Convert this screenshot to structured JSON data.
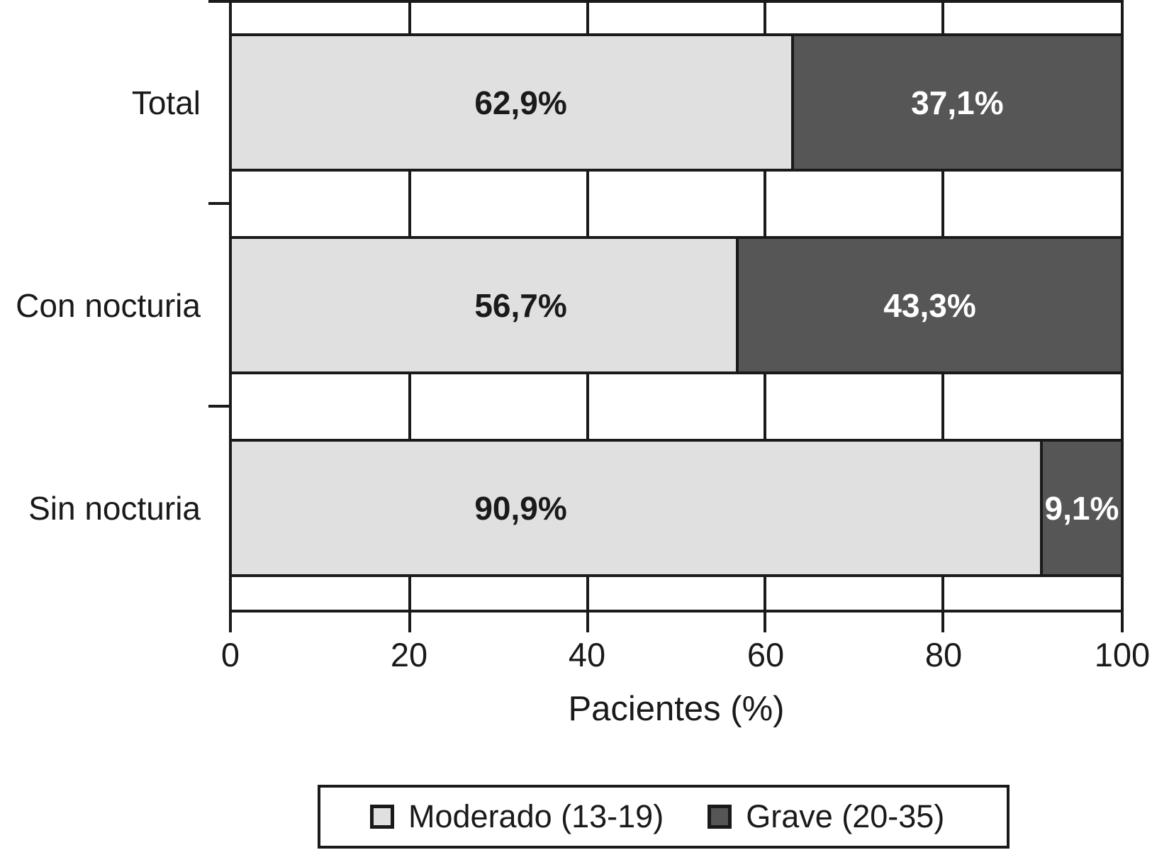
{
  "chart_data": {
    "type": "bar",
    "orientation": "horizontal_stacked",
    "categories": [
      "Total",
      "Con nocturia",
      "Sin nocturia"
    ],
    "series": [
      {
        "name": "Moderado (13-19)",
        "color": "#e0e0e0",
        "values": [
          62.9,
          56.7,
          90.9
        ]
      },
      {
        "name": "Grave (20-35)",
        "color": "#565656",
        "values": [
          37.1,
          43.3,
          9.1
        ]
      }
    ],
    "value_labels": {
      "moderado": [
        "62,9%",
        "56,7%",
        "90,9%"
      ],
      "grave": [
        "37,1%",
        "43,3%",
        "9,1%"
      ]
    },
    "xlabel": "Pacientes (%)",
    "xlim": [
      0,
      100
    ],
    "xticks": [
      "0",
      "20",
      "40",
      "60",
      "80",
      "100"
    ],
    "grid": "vertical gridlines at each x tick",
    "legend_position": "bottom center"
  },
  "legend": {
    "items": [
      {
        "label": "Moderado (13-19)",
        "color": "#e0e0e0"
      },
      {
        "label": "Grave (20-35)",
        "color": "#565656"
      }
    ]
  },
  "colors": {
    "bar_moderado": "#e0e0e0",
    "bar_grave": "#565656",
    "axis_line": "#1a1a1a",
    "background": "#ffffff",
    "value_text_on_light": "#1a1a1a",
    "value_text_on_dark": "#ffffff"
  }
}
